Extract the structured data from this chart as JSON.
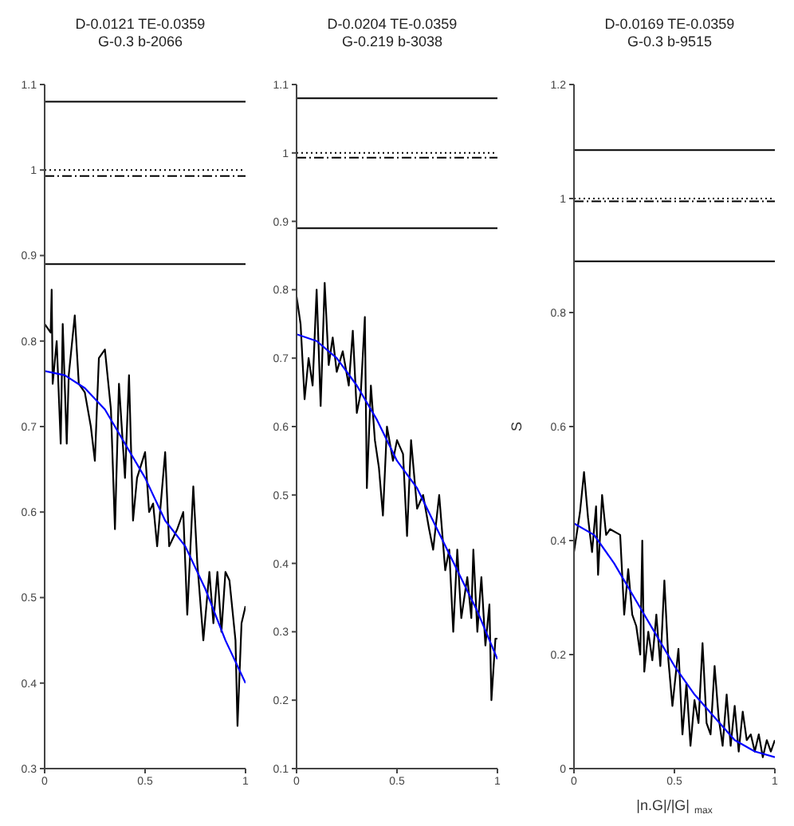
{
  "chart_data": [
    {
      "type": "line",
      "title": "D-0.0121 TE-0.0359\nG-0.3 b-2066",
      "xlim": [
        0,
        1
      ],
      "xticks": [
        0,
        0.5,
        1
      ],
      "ylim": [
        0.3,
        1.1
      ],
      "yticks": [
        0.3,
        0.4,
        0.5,
        0.6,
        0.7,
        0.8,
        0.9,
        1,
        1.1
      ],
      "grid": false,
      "legend": false,
      "marker": "none",
      "series": [
        {
          "color": "#000000",
          "x": [
            0,
            0.03,
            0.035,
            0.04,
            0.06,
            0.08,
            0.09,
            0.11,
            0.12,
            0.15,
            0.17,
            0.2,
            0.23,
            0.25,
            0.27,
            0.3,
            0.33,
            0.35,
            0.37,
            0.4,
            0.42,
            0.44,
            0.46,
            0.5,
            0.52,
            0.54,
            0.56,
            0.6,
            0.62,
            0.66,
            0.69,
            0.71,
            0.74,
            0.76,
            0.79,
            0.82,
            0.84,
            0.86,
            0.88,
            0.9,
            0.92,
            0.95,
            0.96,
            0.98,
            1
          ],
          "values": [
            0.82,
            0.81,
            0.86,
            0.75,
            0.8,
            0.68,
            0.82,
            0.68,
            0.76,
            0.83,
            0.75,
            0.74,
            0.7,
            0.66,
            0.78,
            0.79,
            0.72,
            0.58,
            0.75,
            0.64,
            0.76,
            0.59,
            0.64,
            0.67,
            0.6,
            0.61,
            0.56,
            0.67,
            0.56,
            0.58,
            0.6,
            0.48,
            0.63,
            0.54,
            0.45,
            0.53,
            0.47,
            0.53,
            0.46,
            0.53,
            0.52,
            0.45,
            0.35,
            0.47,
            0.49
          ]
        },
        {
          "color": "#0000ff",
          "x": [
            0,
            0.1,
            0.2,
            0.3,
            0.4,
            0.5,
            0.6,
            0.7,
            0.8,
            0.9,
            1
          ],
          "values": [
            0.765,
            0.76,
            0.745,
            0.72,
            0.68,
            0.64,
            0.59,
            0.56,
            0.51,
            0.45,
            0.4
          ]
        }
      ],
      "ref_lines": [
        {
          "axis": "y",
          "value": 1.08,
          "line_style": "solid"
        },
        {
          "axis": "y",
          "value": 0.89,
          "line_style": "solid"
        },
        {
          "axis": "y",
          "value": 1.0,
          "line_style": "dotted"
        },
        {
          "axis": "y",
          "value": 0.993,
          "line_style": "dashed"
        }
      ]
    },
    {
      "type": "line",
      "title": "D-0.0204 TE-0.0359\nG-0.219 b-3038",
      "xlim": [
        0,
        1
      ],
      "xticks": [
        0,
        0.5,
        1
      ],
      "ylim": [
        0.1,
        1.1
      ],
      "yticks": [
        0.1,
        0.2,
        0.3,
        0.4,
        0.5,
        0.6,
        0.7,
        0.8,
        0.9,
        1,
        1.1
      ],
      "grid": false,
      "legend": false,
      "marker": "none",
      "series": [
        {
          "color": "#000000",
          "x": [
            0,
            0.02,
            0.04,
            0.06,
            0.08,
            0.1,
            0.12,
            0.14,
            0.16,
            0.18,
            0.2,
            0.23,
            0.26,
            0.28,
            0.3,
            0.32,
            0.34,
            0.35,
            0.37,
            0.39,
            0.41,
            0.43,
            0.45,
            0.48,
            0.5,
            0.53,
            0.55,
            0.57,
            0.6,
            0.63,
            0.66,
            0.68,
            0.71,
            0.74,
            0.76,
            0.78,
            0.8,
            0.82,
            0.85,
            0.87,
            0.88,
            0.9,
            0.92,
            0.94,
            0.96,
            0.97,
            0.99,
            1
          ],
          "values": [
            0.79,
            0.75,
            0.64,
            0.7,
            0.66,
            0.8,
            0.63,
            0.81,
            0.69,
            0.73,
            0.68,
            0.71,
            0.66,
            0.74,
            0.62,
            0.65,
            0.76,
            0.51,
            0.66,
            0.58,
            0.54,
            0.47,
            0.6,
            0.55,
            0.58,
            0.56,
            0.44,
            0.58,
            0.48,
            0.5,
            0.45,
            0.42,
            0.5,
            0.39,
            0.42,
            0.3,
            0.42,
            0.32,
            0.38,
            0.32,
            0.42,
            0.3,
            0.38,
            0.28,
            0.34,
            0.2,
            0.29,
            0.29
          ]
        },
        {
          "color": "#0000ff",
          "x": [
            0,
            0.1,
            0.2,
            0.3,
            0.4,
            0.5,
            0.6,
            0.7,
            0.8,
            0.9,
            1
          ],
          "values": [
            0.735,
            0.725,
            0.7,
            0.66,
            0.61,
            0.55,
            0.51,
            0.45,
            0.39,
            0.33,
            0.26
          ]
        }
      ],
      "ref_lines": [
        {
          "axis": "y",
          "value": 1.08,
          "line_style": "solid"
        },
        {
          "axis": "y",
          "value": 0.89,
          "line_style": "solid"
        },
        {
          "axis": "y",
          "value": 1.0,
          "line_style": "dotted"
        },
        {
          "axis": "y",
          "value": 0.993,
          "line_style": "dashed"
        }
      ]
    },
    {
      "type": "line",
      "title": "D-0.0169 TE-0.0359\nG-0.3 b-9515",
      "xlabel": "|n.G|/|G|$_{max}$",
      "ylabel": "S",
      "xlim": [
        0,
        1
      ],
      "xticks": [
        0,
        0.5,
        1
      ],
      "ylim": [
        0,
        1.2
      ],
      "yticks": [
        0,
        0.2,
        0.4,
        0.6,
        0.8,
        1,
        1.2
      ],
      "grid": false,
      "legend": false,
      "marker": "none",
      "series": [
        {
          "color": "#000000",
          "x": [
            0,
            0.03,
            0.05,
            0.07,
            0.09,
            0.11,
            0.12,
            0.14,
            0.16,
            0.18,
            0.23,
            0.25,
            0.27,
            0.29,
            0.31,
            0.33,
            0.34,
            0.35,
            0.37,
            0.39,
            0.41,
            0.43,
            0.45,
            0.47,
            0.49,
            0.52,
            0.54,
            0.56,
            0.58,
            0.6,
            0.62,
            0.64,
            0.66,
            0.68,
            0.7,
            0.72,
            0.74,
            0.76,
            0.78,
            0.8,
            0.82,
            0.84,
            0.86,
            0.88,
            0.9,
            0.92,
            0.94,
            0.96,
            0.98,
            1
          ],
          "values": [
            0.38,
            0.45,
            0.52,
            0.44,
            0.38,
            0.46,
            0.34,
            0.48,
            0.41,
            0.42,
            0.41,
            0.27,
            0.35,
            0.27,
            0.25,
            0.2,
            0.4,
            0.17,
            0.24,
            0.19,
            0.27,
            0.18,
            0.33,
            0.19,
            0.11,
            0.21,
            0.06,
            0.15,
            0.04,
            0.12,
            0.08,
            0.22,
            0.08,
            0.06,
            0.18,
            0.09,
            0.04,
            0.13,
            0.04,
            0.11,
            0.03,
            0.1,
            0.05,
            0.06,
            0.03,
            0.06,
            0.02,
            0.05,
            0.03,
            0.05
          ]
        },
        {
          "color": "#0000ff",
          "x": [
            0,
            0.1,
            0.2,
            0.3,
            0.4,
            0.5,
            0.6,
            0.7,
            0.8,
            0.9,
            1
          ],
          "values": [
            0.43,
            0.41,
            0.36,
            0.3,
            0.24,
            0.18,
            0.13,
            0.09,
            0.05,
            0.03,
            0.02
          ]
        }
      ],
      "ref_lines": [
        {
          "axis": "y",
          "value": 1.085,
          "line_style": "solid"
        },
        {
          "axis": "y",
          "value": 0.89,
          "line_style": "solid"
        },
        {
          "axis": "y",
          "value": 1.0,
          "line_style": "dotted"
        },
        {
          "axis": "y",
          "value": 0.995,
          "line_style": "dashed"
        }
      ]
    }
  ]
}
